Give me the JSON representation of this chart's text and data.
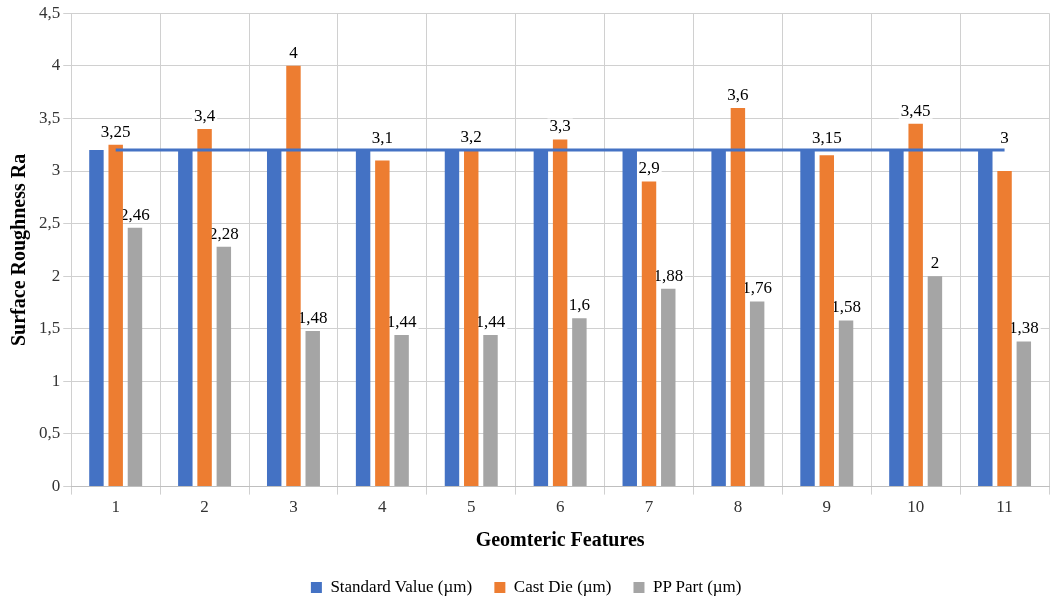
{
  "chart_data": {
    "type": "bar",
    "xlabel": "Geomteric Features",
    "ylabel": "Surface Roughness Ra",
    "categories": [
      "1",
      "2",
      "3",
      "4",
      "5",
      "6",
      "7",
      "8",
      "9",
      "10",
      "11"
    ],
    "series": [
      {
        "name": "Standard Value (µm)",
        "color": "#4472c4",
        "values": [
          3.2,
          3.2,
          3.2,
          3.2,
          3.2,
          3.2,
          3.2,
          3.2,
          3.2,
          3.2,
          3.2
        ]
      },
      {
        "name": "Cast Die (µm)",
        "color": "#ed7d31",
        "values": [
          3.25,
          3.4,
          4,
          3.1,
          3.2,
          3.3,
          2.9,
          3.6,
          3.15,
          3.45,
          3
        ],
        "value_labels": [
          "3,25",
          "3,4",
          "4",
          "3,1",
          "3,2",
          "3,3",
          "2,9",
          "3,6",
          "3,15",
          "3,45",
          "3"
        ]
      },
      {
        "name": "PP Part (µm)",
        "color": "#a5a5a5",
        "values": [
          2.46,
          2.28,
          1.48,
          1.44,
          1.44,
          1.6,
          1.88,
          1.76,
          1.58,
          2,
          1.38
        ],
        "value_labels": [
          "2,46",
          "2,28",
          "1,48",
          "1,44",
          "1,44",
          "1,6",
          "1,88",
          "1,76",
          "1,58",
          "2",
          "1,38"
        ]
      },
      {
        "type": "line",
        "color": "#4472c4",
        "values": [
          3.2,
          3.2,
          3.2,
          3.2,
          3.2,
          3.2,
          3.2,
          3.2,
          3.2,
          3.2,
          3.2
        ],
        "marker": "none"
      }
    ],
    "ylim": [
      0,
      4.5
    ],
    "yticks": [
      0,
      {
        "value": 0.5,
        "label": "0,5"
      },
      1,
      {
        "value": 1.5,
        "label": "1,5"
      },
      2,
      {
        "value": 2.5,
        "label": "2,5"
      },
      3,
      {
        "value": 3.5,
        "label": "3,5"
      },
      4,
      {
        "value": 4.5,
        "label": "4,5"
      }
    ],
    "grid": true,
    "legend": "bottom"
  }
}
